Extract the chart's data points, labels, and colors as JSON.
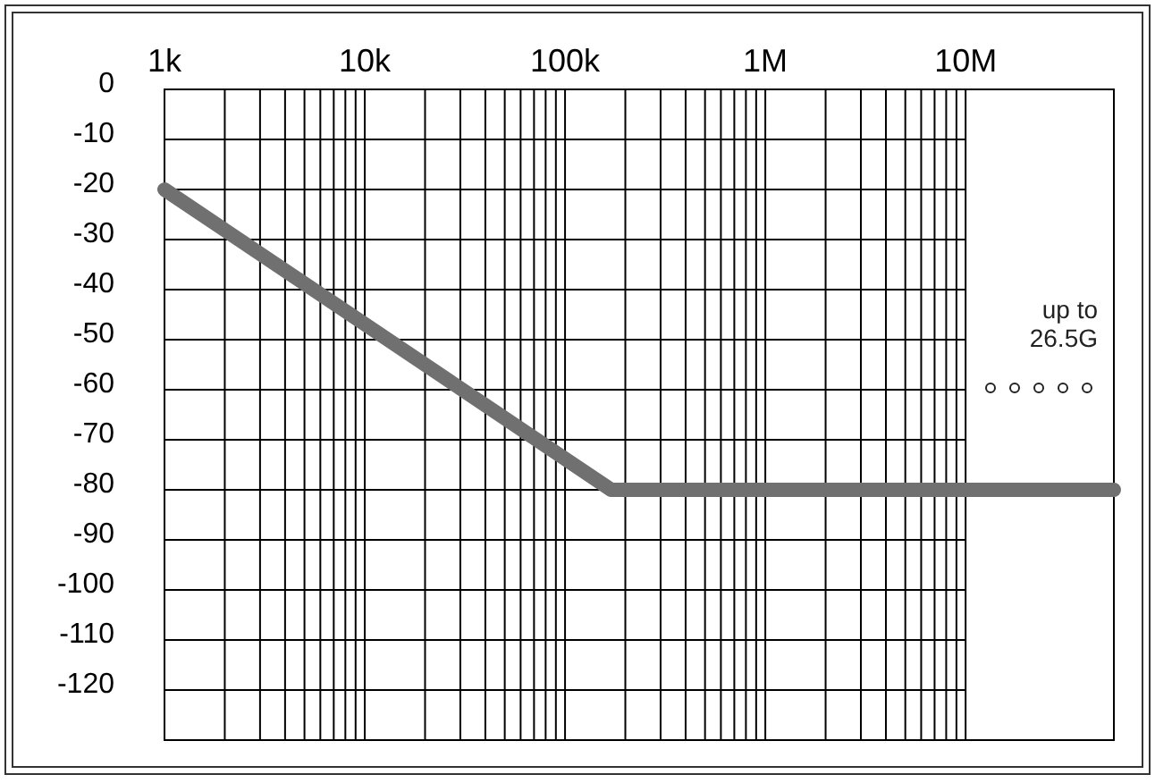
{
  "chart_data": {
    "type": "line",
    "log": "x",
    "series": [
      {
        "color": "#707070",
        "x": [
          1000,
          170000,
          55000000
        ],
        "values": [
          -20,
          -80,
          -80
        ]
      }
    ],
    "xlim": [
      1000,
      55000000
    ],
    "xticks": [
      {
        "value": 1000,
        "label": "1k"
      },
      {
        "value": 10000,
        "label": "10k"
      },
      {
        "value": 100000,
        "label": "100k"
      },
      {
        "value": 1000000,
        "label": "1M"
      },
      {
        "value": 10000000,
        "label": "10M"
      }
    ],
    "ylim": [
      -130,
      0
    ],
    "yticks": [
      0,
      -10,
      -20,
      -30,
      -40,
      -50,
      -60,
      -70,
      -80,
      -90,
      -100,
      -110,
      -120
    ],
    "grid": true,
    "marker": "none",
    "line_style": "solid",
    "annotations": [
      "up to 26.5G"
    ]
  }
}
